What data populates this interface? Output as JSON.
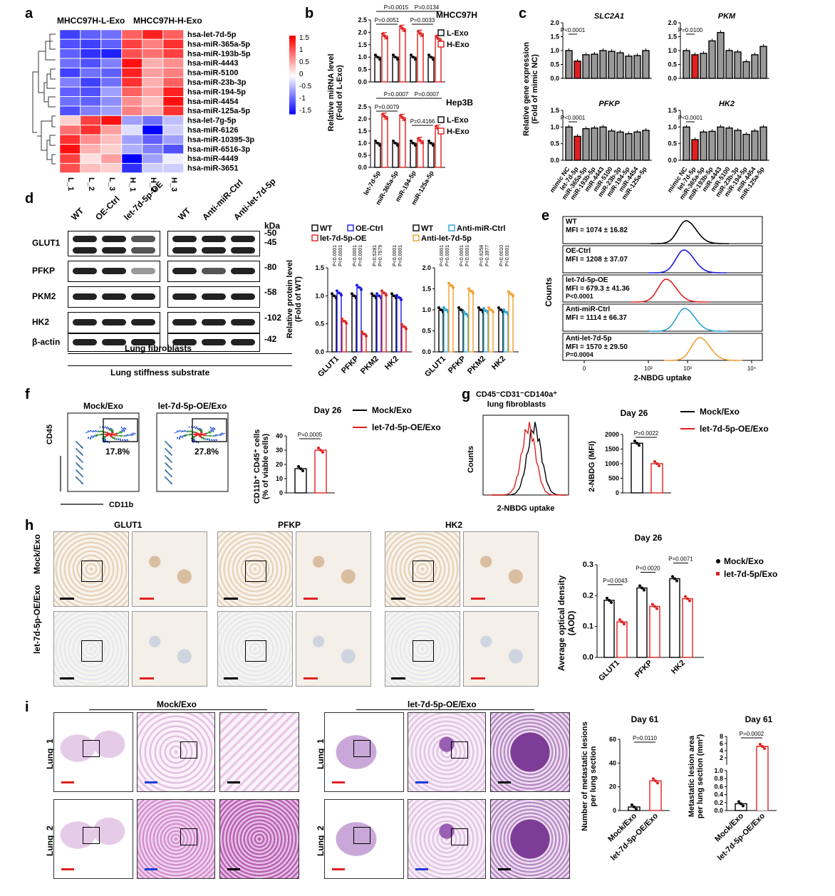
{
  "panels": {
    "a": "a",
    "b": "b",
    "c": "c",
    "d": "d",
    "e": "e",
    "f": "f",
    "g": "g",
    "h": "h",
    "i": "i"
  },
  "a": {
    "group_left": "MHCC97H-L-Exo",
    "group_right": "MHCC97H-H-Exo",
    "rows": [
      "hsa-let-7d-5p",
      "hsa-miR-365a-5p",
      "hsa-miR-193b-5p",
      "hsa-miR-4443",
      "hsa-miR-5100",
      "hsa-miR-23b-3p",
      "hsa-miR-194-5p",
      "hsa-miR-4454",
      "hsa-miR-125a-5p",
      "hsa-let-7g-5p",
      "hsa-miR-6126",
      "hsa-miR-10395-3p",
      "hsa-miR-6516-3p",
      "hsa-miR-4449",
      "hsa-miR-3651"
    ],
    "cols": [
      "L_1",
      "L_2",
      "L_3",
      "H_1",
      "H_2",
      "H_3"
    ],
    "values": [
      [
        -1.2,
        -1.0,
        -0.9,
        1.0,
        1.4,
        1.0
      ],
      [
        -1.1,
        -1.2,
        -1.0,
        1.2,
        0.8,
        1.3
      ],
      [
        -1.0,
        -1.3,
        -1.4,
        1.1,
        0.9,
        1.2
      ],
      [
        -0.9,
        -1.1,
        -0.8,
        1.5,
        0.5,
        0.7
      ],
      [
        -1.2,
        -0.9,
        -1.0,
        1.4,
        0.6,
        0.8
      ],
      [
        -0.8,
        -1.2,
        -0.9,
        1.3,
        0.5,
        1.0
      ],
      [
        -1.0,
        -1.1,
        -0.6,
        1.0,
        0.6,
        1.4
      ],
      [
        -0.9,
        -1.0,
        -0.7,
        0.7,
        0.4,
        1.5
      ],
      [
        -1.1,
        -0.8,
        -0.6,
        0.8,
        0.5,
        1.3
      ],
      [
        0.3,
        1.2,
        1.5,
        -0.6,
        -0.9,
        -0.4
      ],
      [
        0.9,
        1.3,
        0.6,
        -0.2,
        -1.6,
        -0.3
      ],
      [
        1.3,
        0.7,
        0.4,
        -0.6,
        -1.0,
        -0.6
      ],
      [
        1.5,
        0.5,
        0.3,
        -0.5,
        -0.8,
        -1.1
      ],
      [
        1.2,
        0.2,
        0.6,
        -1.6,
        -0.6,
        -0.1
      ],
      [
        1.1,
        0.4,
        0.3,
        -1.3,
        -0.3,
        -0.3
      ]
    ],
    "legend_ticks": [
      "1.5",
      "1",
      "0.5",
      "0",
      "-0.5",
      "-1",
      "-1.5"
    ]
  },
  "b": {
    "ylabel": "Relative miRNA level",
    "ylabel2": "(Fold of L-Exo)",
    "top_title": "MHCC97H",
    "bottom_title": "Hep3B",
    "legend": [
      "L-Exo",
      "H-Exo"
    ],
    "categories": [
      "let-7d-5p",
      "miR-365a-5p",
      "miR-194-5p",
      "miR-125a-5p"
    ],
    "top_pvals": [
      "P=0.0015",
      "P=0.0134",
      "P=0.0051",
      "P=0.0033"
    ],
    "bottom_pvals": [
      "P=0.0007",
      "P=0.0007",
      "P=0.0079",
      "P=0.4166"
    ],
    "yticks_top": [
      "0.0",
      "0.5",
      "1.0",
      "1.5",
      "2.0",
      "2.5"
    ],
    "yticks_bottom": [
      "0.0",
      "0.5",
      "1.0",
      "1.5",
      "2.0",
      "2.5"
    ]
  },
  "c": {
    "ylabel": "Relative gene expression",
    "ylabel2": "(Fold of mimic NC)",
    "genes": [
      "SLC2A1",
      "PKM",
      "PFKP",
      "HK2"
    ],
    "pvals": [
      "P<0.0001",
      "P=0.0100",
      "P<0.0001",
      "P<0.0001"
    ],
    "xcats": [
      "mimic NC",
      "let-7d-5p",
      "miR-365a-5p",
      "miR-193b-5p",
      "miR-4443",
      "miR-5100",
      "miR-23b-3p",
      "miR-194-5p",
      "miR-4454",
      "miR-125a-5p"
    ],
    "yticks": [
      "0.0",
      "0.5",
      "1.0",
      "1.5",
      "2.0"
    ]
  },
  "d": {
    "left_cols": [
      "WT",
      "OE-Ctrl",
      "let-7d-5p-OE"
    ],
    "right_cols": [
      "WT",
      "Anti-miR-Ctrl",
      "Anti-let-7d-5p"
    ],
    "rows": [
      "GLUT1",
      "PFKP",
      "PKM2",
      "HK2",
      "β-actin"
    ],
    "kda_label": "kDa",
    "kda": [
      "50",
      "45",
      "80",
      "58",
      "102",
      "42"
    ],
    "caption1": "Lung fibroblasts",
    "caption2": "Lung stiffness substrate",
    "legend_left": [
      "WT",
      "OE-Ctrl",
      "let-7d-5p-OE"
    ],
    "legend_right": [
      "WT",
      "Anti-miR-Ctrl",
      "Anti-let-7d-5p"
    ],
    "ylabel": "Relative protein level",
    "ylabel2": "(Fold of WT)",
    "cats": [
      "GLUT1",
      "PFKP",
      "PKM2",
      "HK2"
    ],
    "pv_left": [
      "P<0.0001",
      "P<0.0001",
      "P<0.0001",
      "P=0.0001",
      "P=0.5281",
      "P=0.7579",
      "P<0.0001",
      "P<0.0001"
    ],
    "pv_right": [
      "P<0.0001",
      "P=0.0001",
      "P<0.0001",
      "P<0.0001",
      "P=0.9258",
      "P=0.3977",
      "P=0.0010",
      "P<0.0001"
    ],
    "yticks_left": [
      "0.0",
      "0.5",
      "1.0",
      "1.5"
    ],
    "yticks_right": [
      "0.0",
      "0.5",
      "1.0",
      "1.5",
      "2.0"
    ]
  },
  "e": {
    "tracks": [
      {
        "name": "WT",
        "mfi": "MFI = 1074 ± 16.82",
        "p": "",
        "color": "#000000"
      },
      {
        "name": "OE-Ctrl",
        "mfi": "MFI = 1208 ± 37.07",
        "p": "",
        "color": "#1a1adb"
      },
      {
        "name": "let-7d-5p-OE",
        "mfi": "MFI = 679.3 ± 41.36",
        "p": "P<0.0001",
        "color": "#e02020"
      },
      {
        "name": "Anti-miR-Ctrl",
        "mfi": "MFI = 1114 ± 66.37",
        "p": "",
        "color": "#29a3d6"
      },
      {
        "name": "Anti-let-7d-5p",
        "mfi": "MFI = 1570 ± 29.50",
        "p": "P=0.0004",
        "color": "#f0a030"
      }
    ],
    "ylabel": "Counts",
    "xlabel": "2-NBDG uptake",
    "xticks": [
      "0",
      "10²",
      "10³",
      "10⁴"
    ]
  },
  "f": {
    "titles": [
      "Mock/Exo",
      "let-7d-5p-OE/Exo"
    ],
    "pcts": [
      "17.8%",
      "27.8%"
    ],
    "ylab": "CD45",
    "xlab": "CD11b",
    "day": "Day 26",
    "legend": [
      "Mock/Exo",
      "let-7d-5p-OE/Exo"
    ],
    "pval": "P=0.0005",
    "bar_ylabel": "CD11b⁺ CD45⁺ cells",
    "bar_ylabel2": "(% of viable cells)",
    "yticks": [
      "0",
      "10",
      "20",
      "30",
      "40"
    ]
  },
  "g": {
    "title1": "CD45⁻CD31⁻CD140a⁺",
    "title2": "lung fibroblasts",
    "ylabel": "Counts",
    "xlabel": "2-NBDG uptake",
    "day": "Day 26",
    "legend": [
      "Mock/Exo",
      "let-7d-5p-OE/Exo"
    ],
    "pval": "P=0.0022",
    "bar_ylabel": "2-NBDG (MFI)",
    "yticks": [
      "0",
      "500",
      "1000",
      "1500",
      "2000"
    ]
  },
  "h": {
    "cols": [
      "GLUT1",
      "PFKP",
      "HK2"
    ],
    "rows": [
      "Mock/Exo",
      "let-7d-5p-OE/Exo"
    ],
    "day": "Day 26",
    "legend": [
      "Mock/Exo",
      "let-7d-5p/Exo"
    ],
    "pvals": [
      "P=0.0043",
      "P=0.0020",
      "P=0.0071"
    ],
    "ylabel": "Average optical density",
    "ylabel2": "(AOD)",
    "cats": [
      "GLUT1",
      "PFKP",
      "HK2"
    ],
    "yticks": [
      "0.0",
      "0.1",
      "0.2",
      "0.3"
    ]
  },
  "i": {
    "left_title": "Mock/Exo",
    "right_title": "let-7d-5p-OE/Exo",
    "rows": [
      "Lung_1",
      "Lung_2"
    ],
    "day": "Day 61",
    "p1": "P=0.0110",
    "p2": "P=0.0002",
    "yl1a": "Number of metastatic lesions",
    "yl1b": "per lung section",
    "yl2a": "Metastatic lesion area",
    "yl2b": "per lung section (mm²)",
    "cats": [
      "Mock/Exo",
      "let-7d-5p-OE/Exo"
    ],
    "yticks1": [
      "0",
      "20",
      "40",
      "60"
    ],
    "yticks2_low": [
      "0.0",
      "0.2",
      "0.4",
      "0.6",
      "0.8",
      "1.0"
    ],
    "yticks2_high": [
      "2",
      "4",
      "6",
      "8"
    ]
  },
  "chart_data": [
    {
      "type": "bar",
      "title": "b MHCC97H",
      "categories": [
        "let-7d-5p",
        "miR-365a-5p",
        "miR-194-5p",
        "miR-125a-5p"
      ],
      "series": [
        {
          "name": "L-Exo",
          "values": [
            1.0,
            1.0,
            1.0,
            1.0
          ]
        },
        {
          "name": "H-Exo",
          "values": [
            1.85,
            2.15,
            1.95,
            1.75
          ]
        }
      ],
      "ylim": [
        0,
        2.5
      ],
      "ylabel": "Relative miRNA level (Fold of L-Exo)"
    },
    {
      "type": "bar",
      "title": "b Hep3B",
      "categories": [
        "let-7d-5p",
        "miR-365a-5p",
        "miR-194-5p",
        "miR-125a-5p"
      ],
      "series": [
        {
          "name": "L-Exo",
          "values": [
            1.0,
            1.0,
            1.0,
            1.0
          ]
        },
        {
          "name": "H-Exo",
          "values": [
            2.1,
            2.05,
            1.1,
            1.6
          ]
        }
      ],
      "ylim": [
        0,
        2.5
      ]
    },
    {
      "type": "bar",
      "title": "c SLC2A1",
      "categories": [
        "mimic NC",
        "let-7d-5p",
        "miR-365a-5p",
        "miR-193b-5p",
        "miR-4443",
        "miR-5100",
        "miR-23b-3p",
        "miR-194-5p",
        "miR-4454",
        "miR-125a-5p"
      ],
      "series": [
        {
          "name": "expression",
          "values": [
            1.0,
            0.62,
            0.85,
            0.87,
            1.0,
            0.97,
            0.92,
            0.8,
            0.82,
            1.0
          ]
        }
      ],
      "ylim": [
        0,
        2.0
      ]
    },
    {
      "type": "bar",
      "title": "c PKM",
      "categories": [
        "mimic NC",
        "let-7d-5p",
        "miR-365a-5p",
        "miR-193b-5p",
        "miR-4443",
        "miR-5100",
        "miR-23b-3p",
        "miR-194-5p",
        "miR-4454",
        "miR-125a-5p"
      ],
      "series": [
        {
          "name": "expression",
          "values": [
            1.0,
            0.85,
            0.9,
            1.35,
            1.65,
            1.0,
            0.95,
            0.6,
            0.85,
            1.15
          ]
        }
      ],
      "ylim": [
        0,
        2.0
      ]
    },
    {
      "type": "bar",
      "title": "c PFKP",
      "categories": [
        "mimic NC",
        "let-7d-5p",
        "miR-365a-5p",
        "miR-193b-5p",
        "miR-4443",
        "miR-5100",
        "miR-23b-3p",
        "miR-194-5p",
        "miR-4454",
        "miR-125a-5p"
      ],
      "series": [
        {
          "name": "expression",
          "values": [
            1.0,
            0.72,
            0.95,
            0.97,
            1.0,
            0.88,
            0.85,
            0.8,
            0.85,
            0.9
          ]
        }
      ],
      "ylim": [
        0,
        1.5
      ]
    },
    {
      "type": "bar",
      "title": "c HK2",
      "categories": [
        "mimic NC",
        "let-7d-5p",
        "miR-365a-5p",
        "miR-193b-5p",
        "miR-4443",
        "miR-5100",
        "miR-23b-3p",
        "miR-194-5p",
        "miR-4454",
        "miR-125a-5p"
      ],
      "series": [
        {
          "name": "expression",
          "values": [
            1.0,
            0.62,
            0.85,
            0.87,
            1.0,
            0.97,
            0.9,
            0.78,
            0.88,
            1.0
          ]
        }
      ],
      "ylim": [
        0,
        1.5
      ]
    },
    {
      "type": "bar",
      "title": "d left",
      "categories": [
        "GLUT1",
        "PFKP",
        "PKM2",
        "HK2"
      ],
      "series": [
        {
          "name": "WT",
          "values": [
            1.0,
            1.0,
            1.0,
            1.0
          ]
        },
        {
          "name": "OE-Ctrl",
          "values": [
            1.05,
            1.15,
            1.0,
            0.97
          ]
        },
        {
          "name": "let-7d-5p-OE",
          "values": [
            0.55,
            0.32,
            1.05,
            0.45
          ]
        }
      ],
      "ylim": [
        0,
        1.5
      ]
    },
    {
      "type": "bar",
      "title": "d right",
      "categories": [
        "GLUT1",
        "PFKP",
        "PKM2",
        "HK2"
      ],
      "series": [
        {
          "name": "WT",
          "values": [
            1.0,
            1.0,
            1.0,
            1.0
          ]
        },
        {
          "name": "Anti-miR-Ctrl",
          "values": [
            1.0,
            0.9,
            0.98,
            0.95
          ]
        },
        {
          "name": "Anti-let-7d-5p",
          "values": [
            1.58,
            1.45,
            1.0,
            1.38
          ]
        }
      ],
      "ylim": [
        0,
        2.0
      ]
    },
    {
      "type": "bar",
      "title": "f",
      "categories": [
        "Mock/Exo",
        "let-7d-5p-OE/Exo"
      ],
      "series": [
        {
          "name": "CD11b+CD45+ %",
          "values": [
            17,
            30
          ]
        }
      ],
      "ylim": [
        0,
        40
      ]
    },
    {
      "type": "bar",
      "title": "g",
      "categories": [
        "Mock/Exo",
        "let-7d-5p-OE/Exo"
      ],
      "series": [
        {
          "name": "2-NBDG (MFI)",
          "values": [
            1700,
            1000
          ]
        }
      ],
      "ylim": [
        0,
        2000
      ]
    },
    {
      "type": "bar",
      "title": "h",
      "categories": [
        "GLUT1",
        "PFKP",
        "HK2"
      ],
      "series": [
        {
          "name": "Mock/Exo",
          "values": [
            0.185,
            0.225,
            0.255
          ]
        },
        {
          "name": "let-7d-5p/Exo",
          "values": [
            0.115,
            0.165,
            0.19
          ]
        }
      ],
      "ylim": [
        0,
        0.3
      ]
    },
    {
      "type": "bar",
      "title": "i lesions",
      "categories": [
        "Mock/Exo",
        "let-7d-5p-OE/Exo"
      ],
      "series": [
        {
          "name": "count",
          "values": [
            3,
            25
          ]
        }
      ],
      "ylim": [
        0,
        60
      ]
    },
    {
      "type": "bar",
      "title": "i area",
      "categories": [
        "Mock/Exo",
        "let-7d-5p-OE/Exo"
      ],
      "series": [
        {
          "name": "area mm²",
          "values": [
            0.17,
            5.2
          ]
        }
      ],
      "ylim": [
        0,
        8
      ]
    }
  ]
}
